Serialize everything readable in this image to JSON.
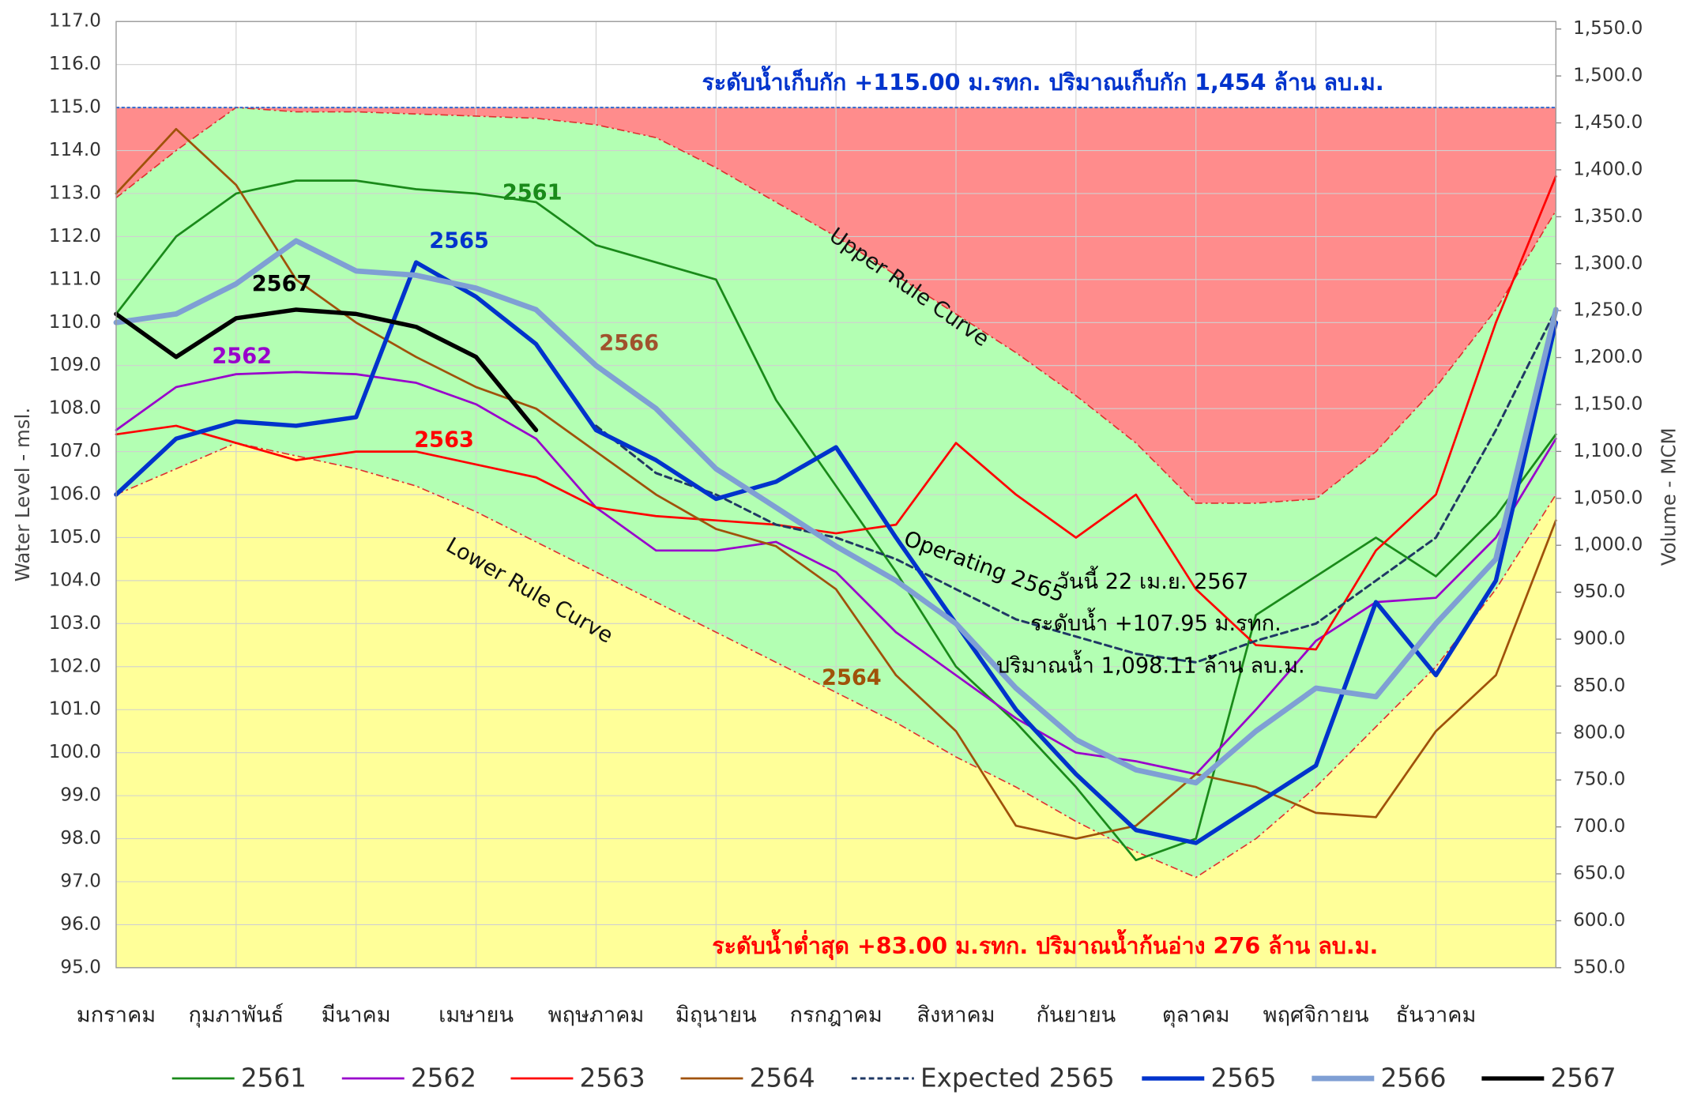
{
  "chart_data": {
    "type": "line",
    "categories": [
      "มกราคม",
      null,
      "กุมภาพันธ์",
      null,
      "มีนาคม",
      null,
      "เมษายน",
      null,
      "พฤษภาคม",
      null,
      "มิถุนายน",
      null,
      "กรกฎาคม",
      null,
      "สิงหาคม",
      null,
      "กันยายน",
      null,
      "ตุลาคม",
      null,
      "พฤศจิกายน",
      null,
      "ธันวาคม",
      null,
      null
    ],
    "ylabel": "Water Level - msl.",
    "y2label": "Volume - MCM",
    "ylim": [
      95,
      117
    ],
    "yticks": [
      {
        "value": 95,
        "label": "95.0"
      },
      {
        "value": 96,
        "label": "96.0"
      },
      {
        "value": 97,
        "label": "97.0"
      },
      {
        "value": 98,
        "label": "98.0"
      },
      {
        "value": 99,
        "label": "99.0"
      },
      {
        "value": 100,
        "label": "100.0"
      },
      {
        "value": 101,
        "label": "101.0"
      },
      {
        "value": 102,
        "label": "102.0"
      },
      {
        "value": 103,
        "label": "103.0"
      },
      {
        "value": 104,
        "label": "104.0"
      },
      {
        "value": 105,
        "label": "105.0"
      },
      {
        "value": 106,
        "label": "106.0"
      },
      {
        "value": 107,
        "label": "107.0"
      },
      {
        "value": 108,
        "label": "108.0"
      },
      {
        "value": 109,
        "label": "109.0"
      },
      {
        "value": 110,
        "label": "110.0"
      },
      {
        "value": 111,
        "label": "111.0"
      },
      {
        "value": 112,
        "label": "112.0"
      },
      {
        "value": 113,
        "label": "113.0"
      },
      {
        "value": 114,
        "label": "114.0"
      },
      {
        "value": 115,
        "label": "115.0"
      },
      {
        "value": 116,
        "label": "116.0"
      },
      {
        "value": 117,
        "label": "117.0"
      }
    ],
    "y2lim": [
      550,
      1558
    ],
    "y2ticks": [
      {
        "value": 550,
        "label": "550.0"
      },
      {
        "value": 600,
        "label": "600.0"
      },
      {
        "value": 650,
        "label": "650.0"
      },
      {
        "value": 700,
        "label": "700.0"
      },
      {
        "value": 750,
        "label": "750.0"
      },
      {
        "value": 800,
        "label": "800.0"
      },
      {
        "value": 850,
        "label": "850.0"
      },
      {
        "value": 900,
        "label": "900.0"
      },
      {
        "value": 950,
        "label": "950.0"
      },
      {
        "value": 1000,
        "label": "1,000.0"
      },
      {
        "value": 1050,
        "label": "1,050.0"
      },
      {
        "value": 1100,
        "label": "1,100.0"
      },
      {
        "value": 1150,
        "label": "1,150.0"
      },
      {
        "value": 1200,
        "label": "1,200.0"
      },
      {
        "value": 1250,
        "label": "1,250.0"
      },
      {
        "value": 1300,
        "label": "1,300.0"
      },
      {
        "value": 1350,
        "label": "1,350.0"
      },
      {
        "value": 1400,
        "label": "1,400.0"
      },
      {
        "value": 1450,
        "label": "1,450.0"
      },
      {
        "value": 1500,
        "label": "1,500.0"
      },
      {
        "value": 1550,
        "label": "1,550.0"
      }
    ],
    "grid": true,
    "full_level": 115,
    "full_level_color": "#3366cc",
    "rule_curves": {
      "upper": {
        "name": "Upper Rule Curve",
        "fill": "#ff8c8c",
        "line_color": "#e03030",
        "values": [
          112.9,
          114.0,
          115.0,
          114.9,
          114.9,
          114.85,
          114.8,
          114.75,
          114.6,
          114.3,
          113.6,
          112.8,
          112.0,
          111.1,
          110.2,
          109.3,
          108.3,
          107.2,
          105.8,
          105.8,
          105.9,
          107.0,
          108.5,
          110.3,
          112.6
        ]
      },
      "lower": {
        "name": "Lower Rule Curve",
        "fill": "#ffff99",
        "line_color": "#e03030",
        "values": [
          106.0,
          106.6,
          107.2,
          106.9,
          106.6,
          106.2,
          105.6,
          104.9,
          104.2,
          103.5,
          102.8,
          102.1,
          101.4,
          100.7,
          99.9,
          99.2,
          98.4,
          97.7,
          97.1,
          98.0,
          99.2,
          100.6,
          102.0,
          103.8,
          106.0
        ]
      },
      "between_fill": "#b3ffb3"
    },
    "series": [
      {
        "name": "2561",
        "color": "#1a8a1a",
        "line_width": 2,
        "values": [
          110.2,
          112.0,
          113.0,
          113.3,
          113.3,
          113.1,
          113.0,
          112.8,
          111.8,
          111.4,
          111.0,
          108.2,
          106.2,
          104.2,
          102.0,
          100.7,
          99.2,
          97.5,
          98.0,
          103.2,
          104.1,
          105.0,
          104.1,
          105.5,
          107.4
        ]
      },
      {
        "name": "2562",
        "color": "#9900cc",
        "line_width": 2,
        "values": [
          107.5,
          108.5,
          108.8,
          108.85,
          108.8,
          108.6,
          108.1,
          107.3,
          105.7,
          104.7,
          104.7,
          104.9,
          104.2,
          102.8,
          101.8,
          100.8,
          100.0,
          99.8,
          99.5,
          101.0,
          102.6,
          103.5,
          103.6,
          105.0,
          107.3
        ]
      },
      {
        "name": "2563",
        "color": "#ff0000",
        "line_width": 2,
        "values": [
          107.4,
          107.6,
          107.2,
          106.8,
          107.0,
          107.0,
          106.7,
          106.4,
          105.7,
          105.5,
          105.4,
          105.3,
          105.1,
          105.3,
          107.2,
          106.0,
          105.0,
          106.0,
          103.8,
          102.5,
          102.4,
          104.7,
          106.0,
          110.0,
          113.4
        ]
      },
      {
        "name": "2564",
        "color": "#a0520a",
        "line_width": 2,
        "values": [
          113.0,
          114.5,
          113.2,
          111.0,
          110.0,
          109.2,
          108.5,
          108.0,
          107.0,
          106.0,
          105.2,
          104.8,
          103.8,
          101.8,
          100.5,
          98.3,
          98.0,
          98.3,
          99.5,
          99.2,
          98.6,
          98.5,
          100.5,
          101.8,
          105.4
        ]
      },
      {
        "name": "Expected 2565",
        "color": "#1f3864",
        "line_width": 2.2,
        "dash": true,
        "values": [
          null,
          null,
          null,
          null,
          null,
          null,
          null,
          null,
          107.6,
          106.5,
          106.0,
          105.3,
          105.0,
          104.5,
          103.8,
          103.1,
          102.7,
          102.3,
          102.1,
          102.6,
          103.0,
          104.0,
          105.0,
          107.5,
          110.3
        ]
      },
      {
        "name": "2565",
        "color": "#0033cc",
        "line_width": 4,
        "values": [
          106.0,
          107.3,
          107.7,
          107.6,
          107.8,
          111.4,
          110.6,
          109.5,
          107.5,
          106.8,
          105.9,
          106.3,
          107.1,
          105.0,
          103.0,
          101.0,
          99.5,
          98.2,
          97.9,
          98.8,
          99.7,
          103.5,
          101.8,
          104.0,
          110.0
        ]
      },
      {
        "name": "2566",
        "color": "#7f9fd4",
        "line_width": 5,
        "values": [
          110.0,
          110.2,
          110.9,
          111.9,
          111.2,
          111.1,
          110.8,
          110.3,
          109.0,
          108.0,
          106.6,
          105.7,
          104.8,
          104.0,
          103.0,
          101.5,
          100.3,
          99.6,
          99.3,
          100.5,
          101.5,
          101.3,
          103.0,
          104.5,
          110.3
        ]
      },
      {
        "name": "2567",
        "color": "#000000",
        "line_width": 4,
        "values": [
          110.2,
          109.2,
          110.1,
          110.3,
          110.2,
          109.9,
          109.2,
          107.5,
          null,
          null,
          null,
          null,
          null,
          null,
          null,
          null,
          null,
          null,
          null,
          null,
          null,
          null,
          null,
          null,
          null
        ]
      }
    ],
    "series_label_colors": [
      "#1a8a1a",
      "#9900cc",
      "#ff0000",
      "#a0520a",
      null,
      "#0033cc",
      "#a0522d",
      "#000000"
    ],
    "annotations": [
      {
        "text": "ระดับน้ำเก็บกัก  +115.00 ม.รทก. ปริมาณเก็บกัก  1,454 ล้าน ลบ.ม.",
        "color": "#0033cc"
      },
      {
        "text": "ระดับน้ำต่ำสุด  +83.00 ม.รทก. ปริมาณน้ำก้นอ่าง  276 ล้าน ลบ.ม.",
        "color": "#ff0000"
      },
      {
        "text": "Operating 2565",
        "color": "#000000"
      },
      {
        "text": "วันนี้ 22 เม.ย. 2567",
        "color": "#000000"
      },
      {
        "text": "ระดับน้ำ  +107.95 ม.รทก.",
        "color": "#000000"
      },
      {
        "text": "ปริมาณน้ำ 1,098.11 ล้าน ลบ.ม.",
        "color": "#000000"
      }
    ]
  }
}
